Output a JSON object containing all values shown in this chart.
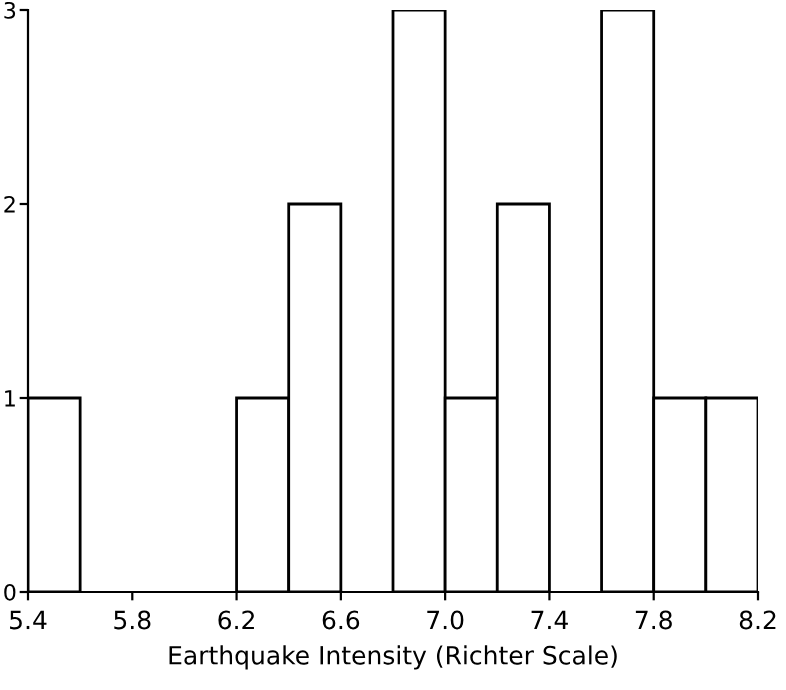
{
  "chart_data": {
    "type": "histogram",
    "xlabel": "Earthquake Intensity (Richter Scale)",
    "bins": [
      5.4,
      5.6,
      5.8,
      6.0,
      6.2,
      6.4,
      6.6,
      6.8,
      7.0,
      7.2,
      7.4,
      7.6,
      7.8,
      8.0,
      8.2
    ],
    "values": [
      1,
      0,
      0,
      0,
      1,
      2,
      0,
      3,
      1,
      2,
      0,
      3,
      1,
      1
    ],
    "color": "#ffffff",
    "xlim": [
      5.4,
      8.2
    ],
    "xticks": [
      5.4,
      5.8,
      6.2,
      6.6,
      {
        "value": 7.0,
        "label": "7.0"
      },
      7.4,
      7.8,
      8.2
    ],
    "ylim": [
      0,
      3
    ],
    "yticks": [
      0,
      1,
      2,
      3
    ],
    "grid": false
  }
}
